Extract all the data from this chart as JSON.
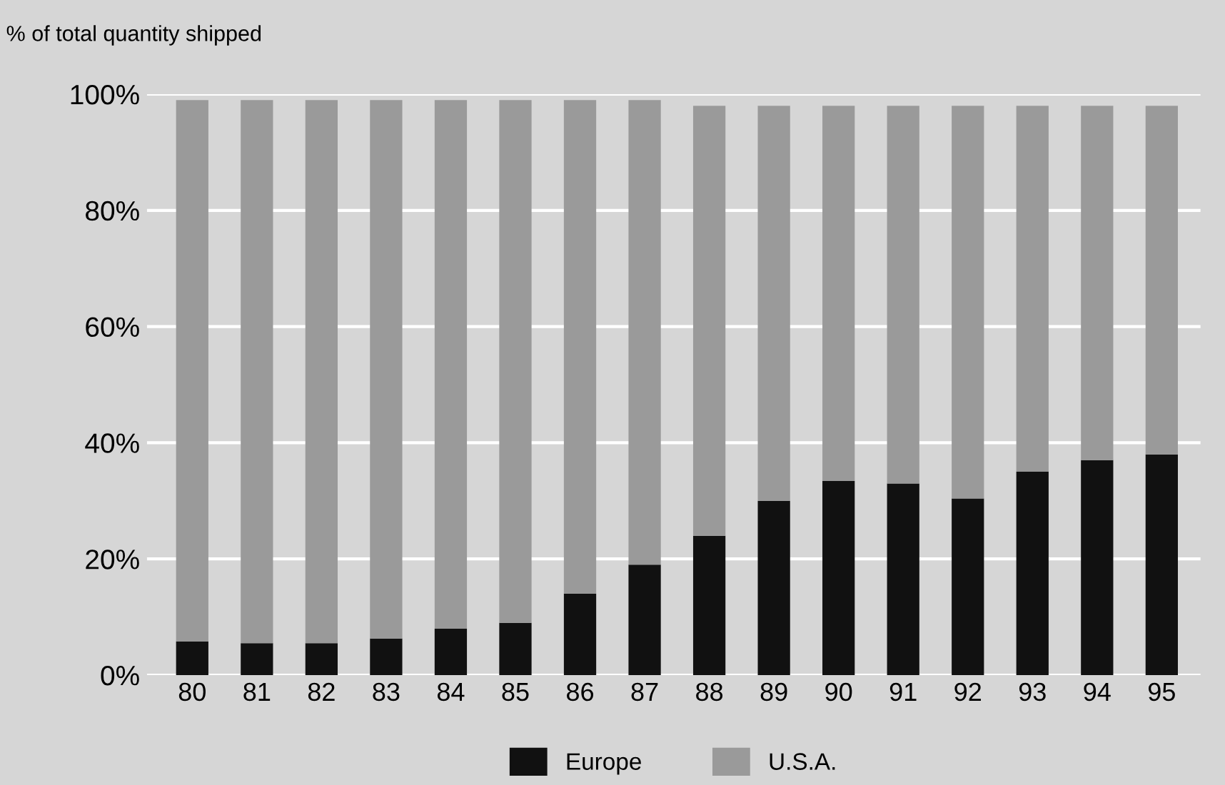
{
  "chart_data": {
    "type": "bar",
    "ylabel": "% of total quantity shipped",
    "categories": [
      "80",
      "81",
      "82",
      "83",
      "84",
      "85",
      "86",
      "87",
      "88",
      "89",
      "90",
      "91",
      "92",
      "93",
      "94",
      "95"
    ],
    "series": [
      {
        "name": "Europe",
        "color": "#111111",
        "values": [
          5.8,
          5.5,
          5.5,
          6.3,
          8,
          9,
          14,
          19,
          24,
          30,
          33.4,
          33,
          30.4,
          35,
          37,
          38
        ]
      },
      {
        "name": "U.S.A.",
        "color": "#9a9a9a",
        "values": [
          93.2,
          93.5,
          93.5,
          92.7,
          91,
          90,
          85,
          80,
          74,
          68,
          64.6,
          65,
          67.6,
          63,
          61,
          60
        ]
      }
    ],
    "stacked": true,
    "ylim": [
      0,
      100
    ],
    "yticks": [
      {
        "value": 0,
        "label": "0%"
      },
      {
        "value": 20,
        "label": "20%"
      },
      {
        "value": 40,
        "label": "40%"
      },
      {
        "value": 60,
        "label": "60%"
      },
      {
        "value": 80,
        "label": "80%"
      },
      {
        "value": 100,
        "label": "100%"
      }
    ],
    "grid": "y",
    "legend": "bottom"
  }
}
